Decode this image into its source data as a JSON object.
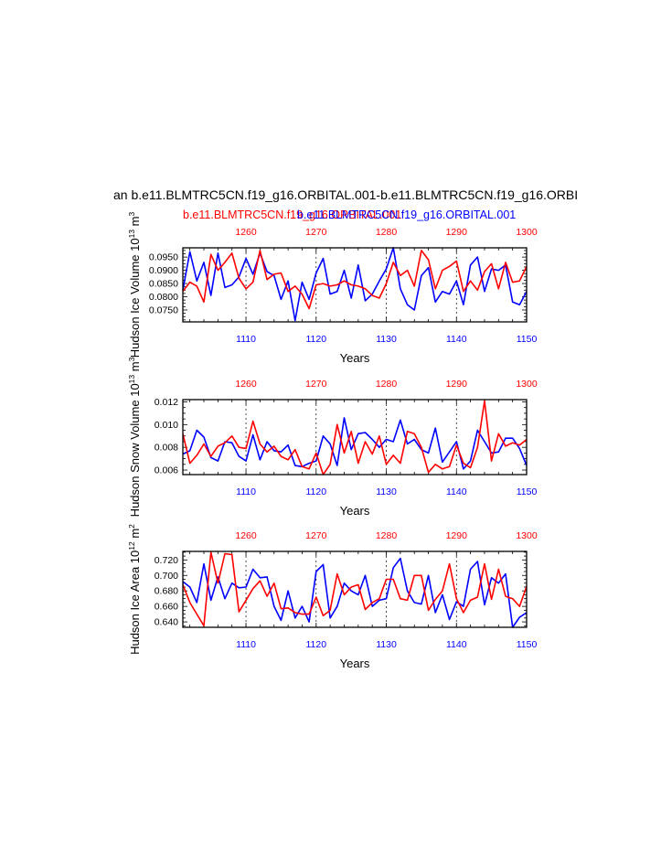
{
  "figure": {
    "title": "an b.e11.BLMTRC5CN.f19_g16.ORBITAL.001-b.e11.BLMTRC5CN.f19_g16.ORBI",
    "subtitle_red": "b.e11.BLMTRC5CN.f19_g16.ORBITAL.001",
    "subtitle_blue": "b.e11.BLMTRC5CN.f19_g16.ORBITAL.001",
    "colors": {
      "red": "#ff0000",
      "blue": "#0000ff",
      "axis": "#000000"
    }
  },
  "chart_data": [
    {
      "type": "line",
      "ylabel": "Hudson Ice Volume 10",
      "ylabel_exp": "13",
      "ylabel_unit": " m",
      "ylabel_unit_exp": "3",
      "xlabel": "Years",
      "xlim": [
        1101,
        1150
      ],
      "xlim_top": [
        1251,
        1300
      ],
      "ylim": [
        0.0705,
        0.0985
      ],
      "yticks": [
        0.075,
        0.08,
        0.085,
        0.09,
        0.095
      ],
      "ytick_labels": [
        "0.0750",
        "0.0800",
        "0.0850",
        "0.0900",
        "0.0950"
      ],
      "xticks": [
        1110,
        1120,
        1130,
        1140,
        1150
      ],
      "xticks_top": [
        1260,
        1270,
        1280,
        1290,
        1300
      ],
      "series": [
        {
          "name": "blue",
          "color": "#0000ff",
          "values": [
            0.0825,
            0.097,
            0.086,
            0.093,
            0.0805,
            0.0965,
            0.0835,
            0.0845,
            0.0875,
            0.0945,
            0.0885,
            0.0965,
            0.0895,
            0.088,
            0.079,
            0.086,
            0.071,
            0.0855,
            0.079,
            0.089,
            0.0945,
            0.081,
            0.082,
            0.09,
            0.0795,
            0.092,
            0.0785,
            0.081,
            0.086,
            0.0905,
            0.0985,
            0.083,
            0.077,
            0.075,
            0.088,
            0.091,
            0.078,
            0.082,
            0.081,
            0.086,
            0.077,
            0.092,
            0.095,
            0.082,
            0.0905,
            0.09,
            0.092,
            0.078,
            0.077,
            0.082
          ]
        },
        {
          "name": "red",
          "color": "#ff0000",
          "values": [
            0.082,
            0.0855,
            0.084,
            0.078,
            0.096,
            0.09,
            0.093,
            0.0965,
            0.087,
            0.083,
            0.0855,
            0.0975,
            0.0865,
            0.0885,
            0.089,
            0.082,
            0.084,
            0.081,
            0.0755,
            0.0845,
            0.085,
            0.084,
            0.0845,
            0.086,
            0.0845,
            0.084,
            0.083,
            0.0805,
            0.0795,
            0.085,
            0.093,
            0.088,
            0.09,
            0.084,
            0.0975,
            0.094,
            0.083,
            0.09,
            0.0915,
            0.0935,
            0.082,
            0.086,
            0.0825,
            0.0895,
            0.0925,
            0.083,
            0.093,
            0.0855,
            0.086,
            0.0915
          ]
        }
      ]
    },
    {
      "type": "line",
      "ylabel": "Hudson Snow Volume 10",
      "ylabel_exp": "13",
      "ylabel_unit": " m",
      "ylabel_unit_exp": "3",
      "xlabel": "Years",
      "xlim": [
        1101,
        1150
      ],
      "xlim_top": [
        1251,
        1300
      ],
      "ylim": [
        0.0056,
        0.0122
      ],
      "yticks": [
        0.006,
        0.008,
        0.01,
        0.012
      ],
      "ytick_labels": [
        "0.006",
        "0.008",
        "0.010",
        "0.012"
      ],
      "xticks": [
        1110,
        1120,
        1130,
        1140,
        1150
      ],
      "xticks_top": [
        1260,
        1270,
        1280,
        1290,
        1300
      ],
      "series": [
        {
          "name": "blue",
          "color": "#0000ff",
          "values": [
            0.0074,
            0.0077,
            0.0095,
            0.0089,
            0.0071,
            0.0068,
            0.0085,
            0.0084,
            0.0072,
            0.0068,
            0.0091,
            0.0069,
            0.0085,
            0.0077,
            0.0076,
            0.0082,
            0.0064,
            0.0063,
            0.0066,
            0.0068,
            0.009,
            0.0083,
            0.0064,
            0.0106,
            0.0078,
            0.0092,
            0.0093,
            0.0087,
            0.008,
            0.0087,
            0.0085,
            0.0104,
            0.0083,
            0.0087,
            0.0078,
            0.0075,
            0.0097,
            0.0067,
            0.0076,
            0.0085,
            0.0061,
            0.0068,
            0.0095,
            0.0085,
            0.0075,
            0.0076,
            0.0088,
            0.0088,
            0.0079,
            0.0064
          ]
        },
        {
          "name": "red",
          "color": "#ff0000",
          "values": [
            0.0092,
            0.0066,
            0.0073,
            0.0083,
            0.0072,
            0.0081,
            0.0084,
            0.009,
            0.008,
            0.0079,
            0.0103,
            0.0083,
            0.0076,
            0.0081,
            0.0072,
            0.0069,
            0.0078,
            0.0063,
            0.0061,
            0.0075,
            0.0056,
            0.0065,
            0.01,
            0.0075,
            0.0094,
            0.0066,
            0.0085,
            0.0074,
            0.009,
            0.0065,
            0.0073,
            0.0066,
            0.0094,
            0.0092,
            0.008,
            0.0058,
            0.0065,
            0.0061,
            0.0063,
            0.0082,
            0.0066,
            0.0062,
            0.008,
            0.0121,
            0.0068,
            0.0092,
            0.0081,
            0.0084,
            0.0082,
            0.0087
          ]
        }
      ]
    },
    {
      "type": "line",
      "ylabel": "Hudson Ice Area 10",
      "ylabel_exp": "12",
      "ylabel_unit": " m",
      "ylabel_unit_exp": "2",
      "xlabel": "Years",
      "xlim": [
        1101,
        1150
      ],
      "xlim_top": [
        1251,
        1300
      ],
      "ylim": [
        0.633,
        0.731
      ],
      "yticks": [
        0.64,
        0.66,
        0.68,
        0.7,
        0.72
      ],
      "ytick_labels": [
        "0.640",
        "0.660",
        "0.680",
        "0.700",
        "0.720"
      ],
      "xticks": [
        1110,
        1120,
        1130,
        1140,
        1150
      ],
      "xticks_top": [
        1260,
        1270,
        1280,
        1290,
        1300
      ],
      "series": [
        {
          "name": "blue",
          "color": "#0000ff",
          "values": [
            0.692,
            0.685,
            0.665,
            0.715,
            0.668,
            0.698,
            0.67,
            0.69,
            0.684,
            0.685,
            0.708,
            0.697,
            0.698,
            0.66,
            0.642,
            0.68,
            0.645,
            0.66,
            0.64,
            0.705,
            0.714,
            0.645,
            0.66,
            0.69,
            0.68,
            0.675,
            0.7,
            0.66,
            0.668,
            0.67,
            0.71,
            0.722,
            0.68,
            0.665,
            0.663,
            0.7,
            0.652,
            0.675,
            0.643,
            0.666,
            0.66,
            0.708,
            0.718,
            0.662,
            0.697,
            0.69,
            0.702,
            0.633,
            0.646,
            0.652
          ]
        },
        {
          "name": "red",
          "color": "#ff0000",
          "values": [
            0.688,
            0.665,
            0.65,
            0.635,
            0.73,
            0.69,
            0.728,
            0.727,
            0.653,
            0.668,
            0.683,
            0.693,
            0.673,
            0.69,
            0.657,
            0.658,
            0.652,
            0.65,
            0.65,
            0.672,
            0.648,
            0.655,
            0.702,
            0.675,
            0.685,
            0.688,
            0.656,
            0.665,
            0.67,
            0.695,
            0.695,
            0.67,
            0.668,
            0.7,
            0.7,
            0.655,
            0.669,
            0.68,
            0.715,
            0.67,
            0.652,
            0.668,
            0.672,
            0.715,
            0.669,
            0.708,
            0.673,
            0.67,
            0.66,
            0.686
          ]
        }
      ]
    }
  ]
}
